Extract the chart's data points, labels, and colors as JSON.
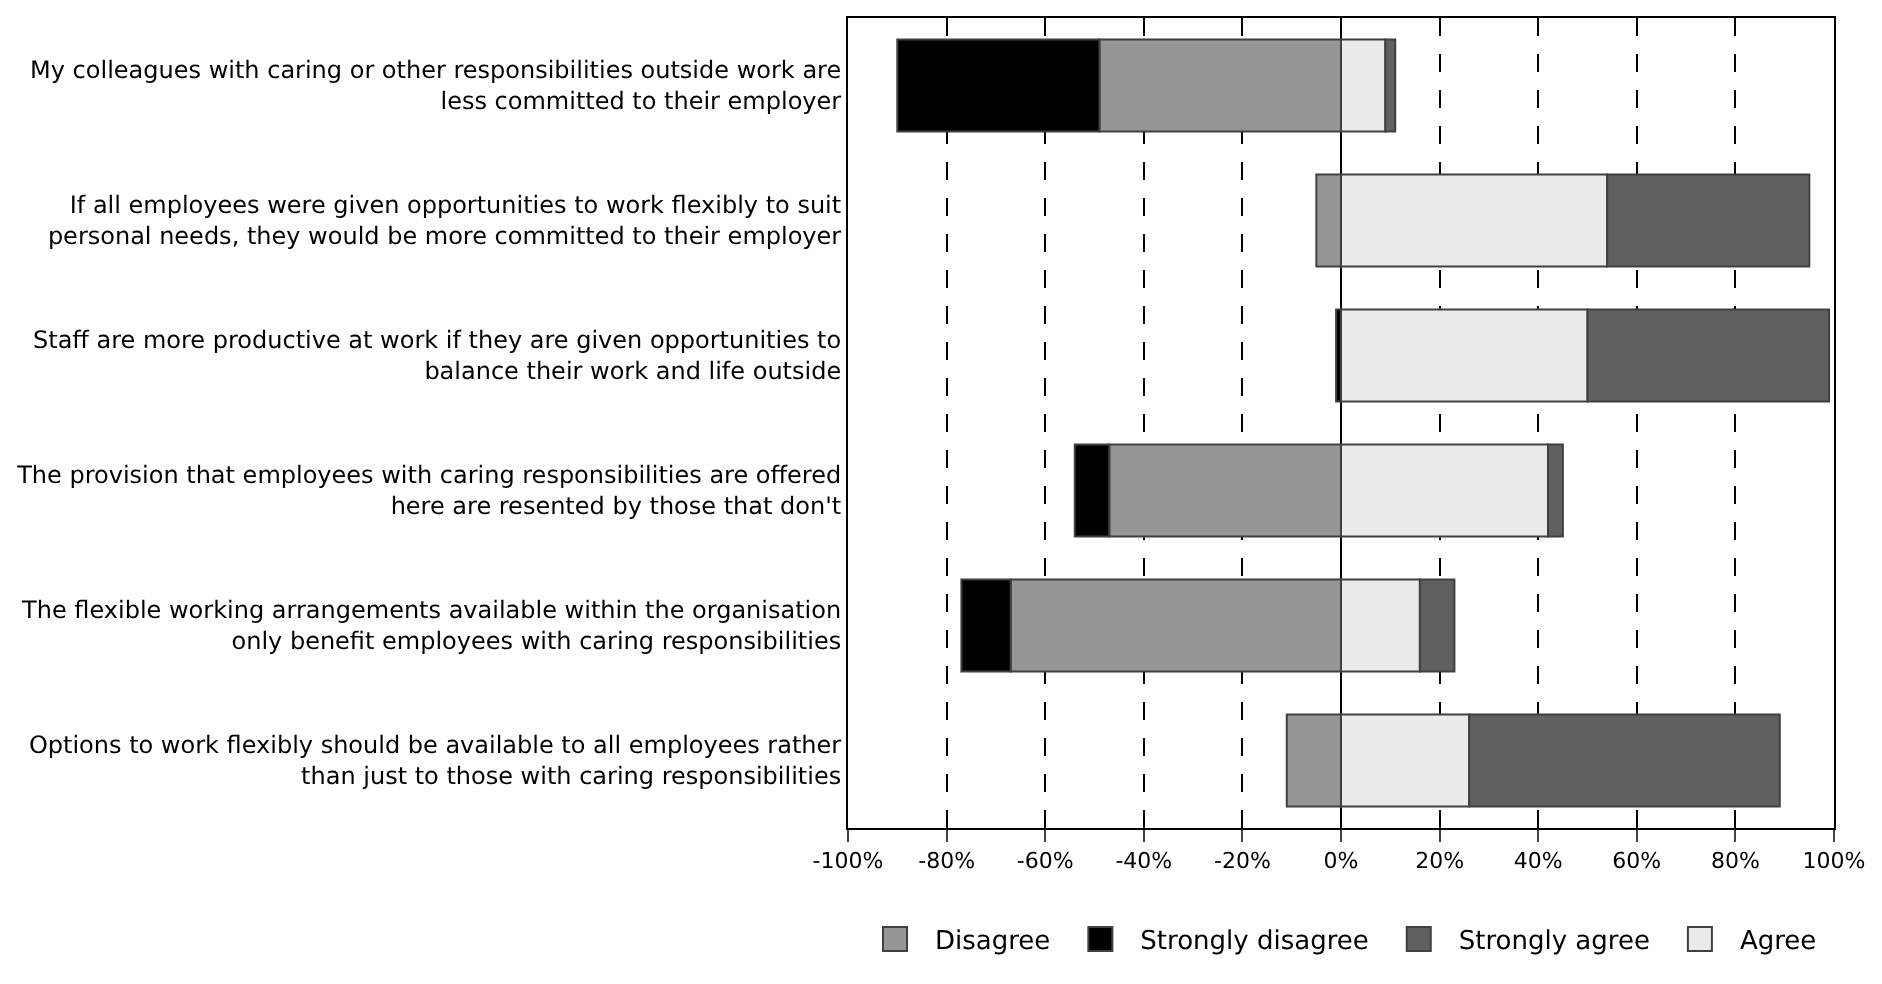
{
  "chart_data": {
    "type": "bar",
    "orientation": "horizontal",
    "stacked": true,
    "categories": [
      "My colleagues with caring or other responsibilities outside work are less committed to their employer",
      "If all employees were given opportunities to work flexibly to suit personal needs, they would be more committed to their employer",
      "Staff are more productive at work if they are given opportunities to balance their work and life outside",
      "The provision that employees with caring responsibilities are offered here are resented by those that don't",
      "The flexible working arrangements available within the organisation only benefit employees with caring responsibilities",
      "Options to work flexibly should be available to all employees rather than just to those with caring responsibilities"
    ],
    "series": [
      {
        "name": "Disagree",
        "color": "#969696",
        "values": [
          -49,
          -5,
          0,
          -47,
          -67,
          -11
        ]
      },
      {
        "name": "Strongly disagree",
        "color": "#000000",
        "values": [
          -41,
          0,
          -1,
          -7,
          -10,
          0
        ]
      },
      {
        "name": "Agree",
        "color": "#eaeaea",
        "values": [
          9,
          54,
          50,
          42,
          16,
          26
        ]
      },
      {
        "name": "Strongly agree",
        "color": "#606060",
        "values": [
          2,
          41,
          49,
          3,
          7,
          63
        ]
      }
    ],
    "xlim": [
      -100,
      100
    ],
    "xticks": [
      {
        "value": -100,
        "label": "-100%"
      },
      {
        "value": -80,
        "label": "-80%"
      },
      {
        "value": -60,
        "label": "-60%"
      },
      {
        "value": -40,
        "label": "-40%"
      },
      {
        "value": -20,
        "label": "-20%"
      },
      {
        "value": 0,
        "label": "0%"
      },
      {
        "value": 20,
        "label": "20%"
      },
      {
        "value": 40,
        "label": "40%"
      },
      {
        "value": 60,
        "label": "60%"
      },
      {
        "value": 80,
        "label": "80%"
      },
      {
        "value": 100,
        "label": "100%"
      }
    ],
    "grid": "x",
    "legend": "bottom"
  }
}
